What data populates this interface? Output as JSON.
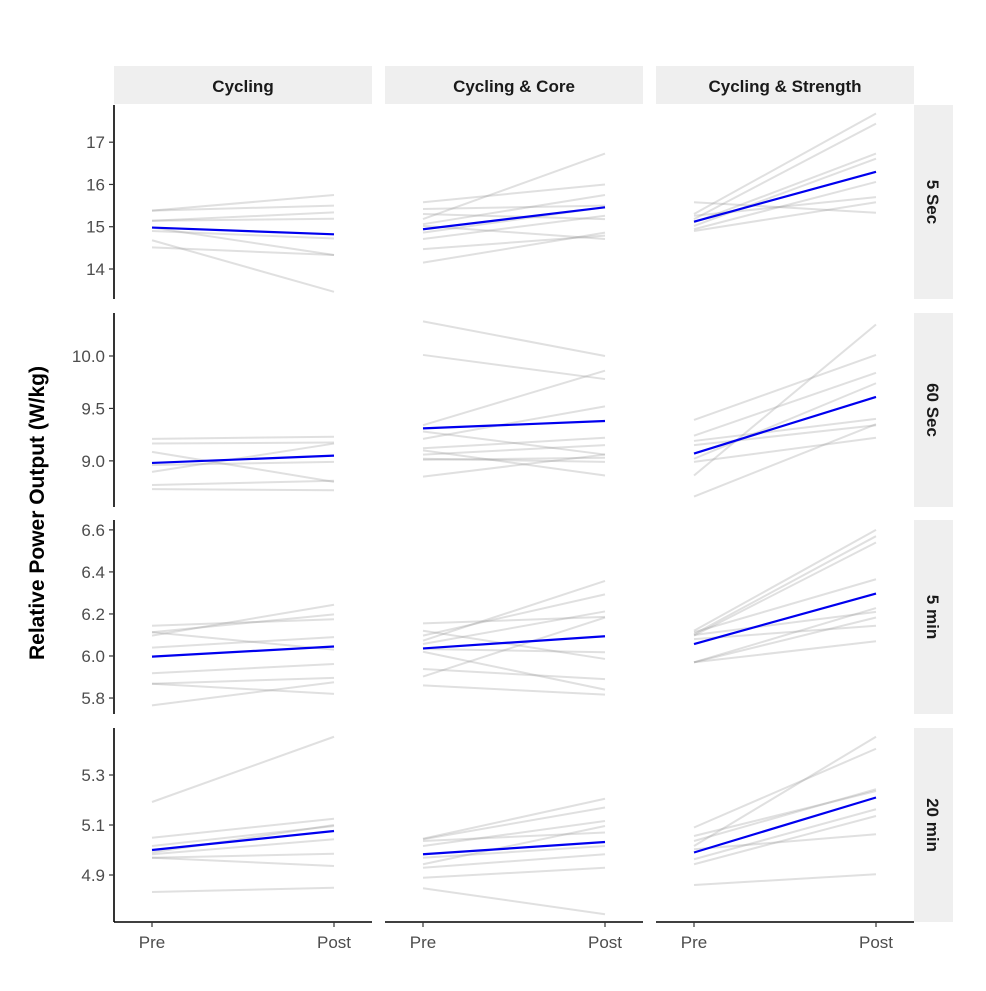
{
  "chart_data": {
    "type": "line",
    "layout": "faceted grid, free y-scale per row",
    "ylabel": "Relative Power Output (W/kg)",
    "xlabel": "",
    "x_categories": [
      "Pre",
      "Post"
    ],
    "columns": [
      "Cycling",
      "Cycling & Core",
      "Cycling & Strength"
    ],
    "rows": [
      {
        "label": "5 Sec",
        "ylim": [
          13.29,
          17.88
        ],
        "ticks": [
          14,
          15,
          16,
          17
        ],
        "tick_labels": [
          "14",
          "15",
          "16",
          "17"
        ]
      },
      {
        "label": "60 Sec",
        "ylim": [
          8.56,
          10.41
        ],
        "ticks": [
          9.0,
          9.5,
          10.0
        ],
        "tick_labels": [
          "9.0",
          "9.5",
          "10.0"
        ]
      },
      {
        "label": "5 min",
        "ylim": [
          5.724,
          6.647
        ],
        "ticks": [
          5.8,
          6.0,
          6.2,
          6.4,
          6.6
        ],
        "tick_labels": [
          "5.8",
          "6.0",
          "6.2",
          "6.4",
          "6.6"
        ]
      },
      {
        "label": "20 min",
        "ylim": [
          4.712,
          5.488
        ],
        "ticks": [
          4.9,
          5.1,
          5.3
        ],
        "tick_labels": [
          "4.9",
          "5.1",
          "5.3"
        ]
      }
    ],
    "colors": {
      "individual": "#bdbdbd",
      "mean": "#0000ee",
      "strip": "#efefef"
    },
    "panels": [
      [
        {
          "individuals": [
            [
              15.38,
              15.75
            ],
            [
              15.38,
              15.5
            ],
            [
              15.14,
              15.34
            ],
            [
              15.14,
              15.19
            ],
            [
              14.9,
              14.72
            ],
            [
              14.68,
              13.46
            ],
            [
              14.51,
              14.33
            ],
            [
              14.98,
              14.33
            ]
          ],
          "mean": [
            14.98,
            14.82
          ]
        },
        {
          "individuals": [
            [
              15.58,
              16.0
            ],
            [
              15.42,
              15.5
            ],
            [
              15.18,
              16.73
            ],
            [
              15.3,
              15.18
            ],
            [
              15.06,
              15.75
            ],
            [
              14.86,
              15.46
            ],
            [
              14.71,
              15.26
            ],
            [
              14.47,
              14.79
            ],
            [
              14.15,
              14.86
            ],
            [
              15.02,
              14.71
            ]
          ],
          "mean": [
            14.94,
            15.46
          ]
        },
        {
          "individuals": [
            [
              15.58,
              15.33
            ],
            [
              15.3,
              17.68
            ],
            [
              15.18,
              17.44
            ],
            [
              15.1,
              16.73
            ],
            [
              15.02,
              16.61
            ],
            [
              14.94,
              16.06
            ],
            [
              14.9,
              15.58
            ],
            [
              15.26,
              15.7
            ]
          ],
          "mean": [
            15.12,
            16.3
          ]
        }
      ],
      [
        {
          "individuals": [
            [
              9.21,
              9.23
            ],
            [
              9.165,
              9.175
            ],
            [
              9.086,
              8.8
            ],
            [
              8.895,
              9.165
            ],
            [
              8.96,
              8.99
            ],
            [
              8.77,
              8.81
            ],
            [
              8.73,
              8.72
            ]
          ],
          "mean": [
            8.98,
            9.05
          ]
        },
        {
          "individuals": [
            [
              10.33,
              10.0
            ],
            [
              10.01,
              9.78
            ],
            [
              9.34,
              9.86
            ],
            [
              9.21,
              9.52
            ],
            [
              9.28,
              9.06
            ],
            [
              9.12,
              9.22
            ],
            [
              9.06,
              9.15
            ],
            [
              9.01,
              9.03
            ],
            [
              9.1,
              8.86
            ],
            [
              8.85,
              9.06
            ],
            [
              9.02,
              8.99
            ]
          ],
          "mean": [
            9.31,
            9.38
          ]
        },
        {
          "individuals": [
            [
              9.39,
              10.01
            ],
            [
              8.66,
              9.35
            ],
            [
              8.86,
              10.3
            ],
            [
              9.02,
              9.74
            ],
            [
              9.24,
              9.84
            ],
            [
              9.19,
              9.4
            ],
            [
              9.15,
              9.34
            ],
            [
              8.99,
              9.22
            ]
          ],
          "mean": [
            9.07,
            9.61
          ]
        }
      ],
      [
        {
          "individuals": [
            [
              6.144,
              6.175
            ],
            [
              6.113,
              6.198
            ],
            [
              6.097,
              6.244
            ],
            [
              6.113,
              6.03
            ],
            [
              6.04,
              6.09
            ],
            [
              5.918,
              5.962
            ],
            [
              5.868,
              5.896
            ],
            [
              5.868,
              5.82
            ],
            [
              5.765,
              5.875
            ]
          ],
          "mean": [
            5.997,
            6.045
          ]
        },
        {
          "individuals": [
            [
              6.155,
              6.186
            ],
            [
              6.12,
              5.986
            ],
            [
              6.073,
              6.357
            ],
            [
              6.057,
              6.212
            ],
            [
              6.097,
              6.293
            ],
            [
              6.033,
              6.018
            ],
            [
              5.938,
              5.89
            ],
            [
              5.902,
              6.183
            ],
            [
              5.86,
              5.816
            ],
            [
              6.02,
              5.84
            ]
          ],
          "mean": [
            6.036,
            6.094
          ]
        },
        {
          "individuals": [
            [
              6.12,
              6.6
            ],
            [
              6.104,
              6.57
            ],
            [
              6.097,
              6.54
            ],
            [
              6.113,
              6.365
            ],
            [
              6.08,
              6.144
            ],
            [
              5.97,
              6.228
            ],
            [
              5.97,
              6.183
            ],
            [
              5.97,
              6.07
            ],
            [
              6.1,
              6.21
            ]
          ],
          "mean": [
            6.057,
            6.297
          ]
        }
      ],
      [
        {
          "individuals": [
            [
              5.192,
              5.453
            ],
            [
              5.049,
              5.125
            ],
            [
              5.016,
              5.096
            ],
            [
              4.983,
              5.043
            ],
            [
              4.969,
              4.985
            ],
            [
              4.969,
              4.936
            ],
            [
              4.832,
              4.849
            ],
            [
              4.99,
              5.1
            ]
          ],
          "mean": [
            5.0,
            5.076
          ]
        },
        {
          "individuals": [
            [
              5.045,
              5.205
            ],
            [
              5.043,
              5.17
            ],
            [
              5.036,
              5.07
            ],
            [
              5.016,
              5.116
            ],
            [
              4.969,
              5.016
            ],
            [
              4.943,
              5.096
            ],
            [
              4.929,
              4.983
            ],
            [
              4.889,
              4.929
            ],
            [
              4.847,
              4.743
            ]
          ],
          "mean": [
            4.983,
            5.032
          ]
        },
        {
          "individuals": [
            [
              5.09,
              5.405
            ],
            [
              5.016,
              5.453
            ],
            [
              5.056,
              5.236
            ],
            [
              5.036,
              5.243
            ],
            [
              4.963,
              5.163
            ],
            [
              4.943,
              5.136
            ],
            [
              5.003,
              5.063
            ],
            [
              4.86,
              4.903
            ]
          ],
          "mean": [
            4.99,
            5.21
          ]
        }
      ]
    ]
  }
}
